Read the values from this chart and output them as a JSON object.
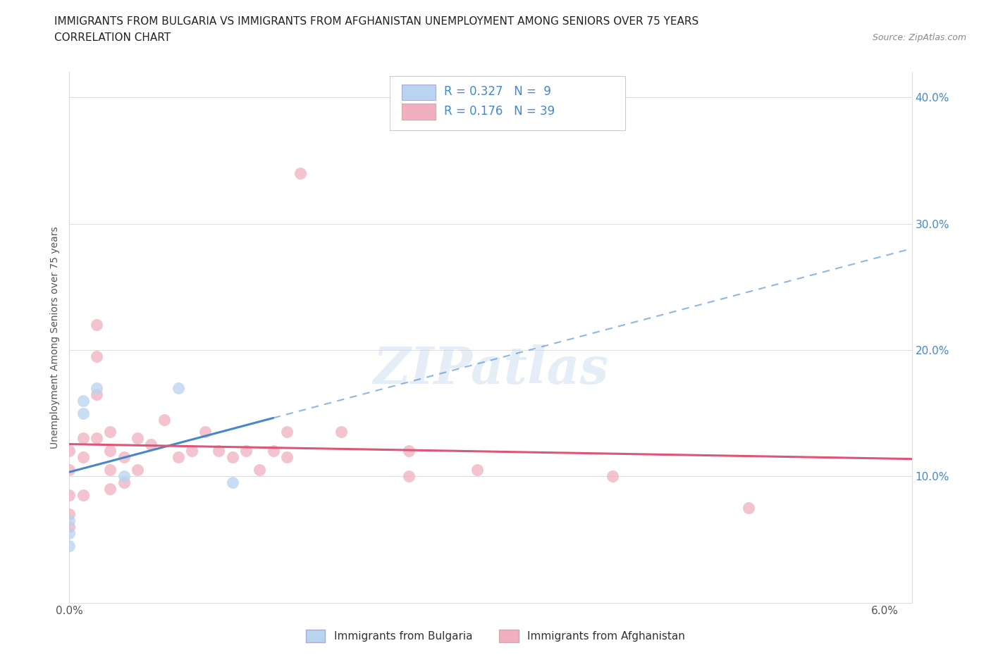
{
  "title_line1": "IMMIGRANTS FROM BULGARIA VS IMMIGRANTS FROM AFGHANISTAN UNEMPLOYMENT AMONG SENIORS OVER 75 YEARS",
  "title_line2": "CORRELATION CHART",
  "source": "Source: ZipAtlas.com",
  "ylabel": "Unemployment Among Seniors over 75 years",
  "xlim": [
    0.0,
    0.062
  ],
  "ylim": [
    0.0,
    0.42
  ],
  "x_ticks": [
    0.0,
    0.01,
    0.02,
    0.03,
    0.04,
    0.05,
    0.06
  ],
  "x_tick_labels": [
    "0.0%",
    "",
    "",
    "",
    "",
    "",
    "6.0%"
  ],
  "y_ticks_right": [
    0.1,
    0.2,
    0.3,
    0.4
  ],
  "y_tick_labels_right": [
    "10.0%",
    "20.0%",
    "30.0%",
    "40.0%"
  ],
  "watermark_text": "ZIPatlas",
  "legend_R_bulgaria": "0.327",
  "legend_N_bulgaria": " 9",
  "legend_R_afghanistan": "0.176",
  "legend_N_afghanistan": "39",
  "bulgaria_face_color": "#b8d4f0",
  "afghanistan_face_color": "#f0b0c0",
  "bulgaria_line_color": "#4488cc",
  "afghanistan_line_color": "#dd5577",
  "right_axis_color": "#4488cc",
  "grid_color": "#dddddd",
  "background_color": "#ffffff",
  "bulgaria_x": [
    0.0,
    0.0,
    0.0,
    0.001,
    0.001,
    0.002,
    0.004,
    0.008,
    0.012
  ],
  "bulgaria_y": [
    0.065,
    0.055,
    0.045,
    0.15,
    0.16,
    0.17,
    0.1,
    0.17,
    0.095
  ],
  "afghanistan_x": [
    0.0,
    0.0,
    0.0,
    0.0,
    0.0,
    0.001,
    0.001,
    0.001,
    0.002,
    0.002,
    0.002,
    0.002,
    0.003,
    0.003,
    0.003,
    0.003,
    0.004,
    0.004,
    0.005,
    0.005,
    0.006,
    0.007,
    0.008,
    0.009,
    0.01,
    0.011,
    0.012,
    0.013,
    0.014,
    0.015,
    0.016,
    0.016,
    0.017,
    0.02,
    0.025,
    0.025,
    0.03,
    0.04,
    0.05
  ],
  "afghanistan_y": [
    0.12,
    0.105,
    0.085,
    0.07,
    0.06,
    0.13,
    0.115,
    0.085,
    0.22,
    0.195,
    0.165,
    0.13,
    0.135,
    0.12,
    0.105,
    0.09,
    0.115,
    0.095,
    0.13,
    0.105,
    0.125,
    0.145,
    0.115,
    0.12,
    0.135,
    0.12,
    0.115,
    0.12,
    0.105,
    0.12,
    0.135,
    0.115,
    0.34,
    0.135,
    0.12,
    0.1,
    0.105,
    0.1,
    0.075
  ],
  "dot_size": 150,
  "dot_alpha": 0.75
}
